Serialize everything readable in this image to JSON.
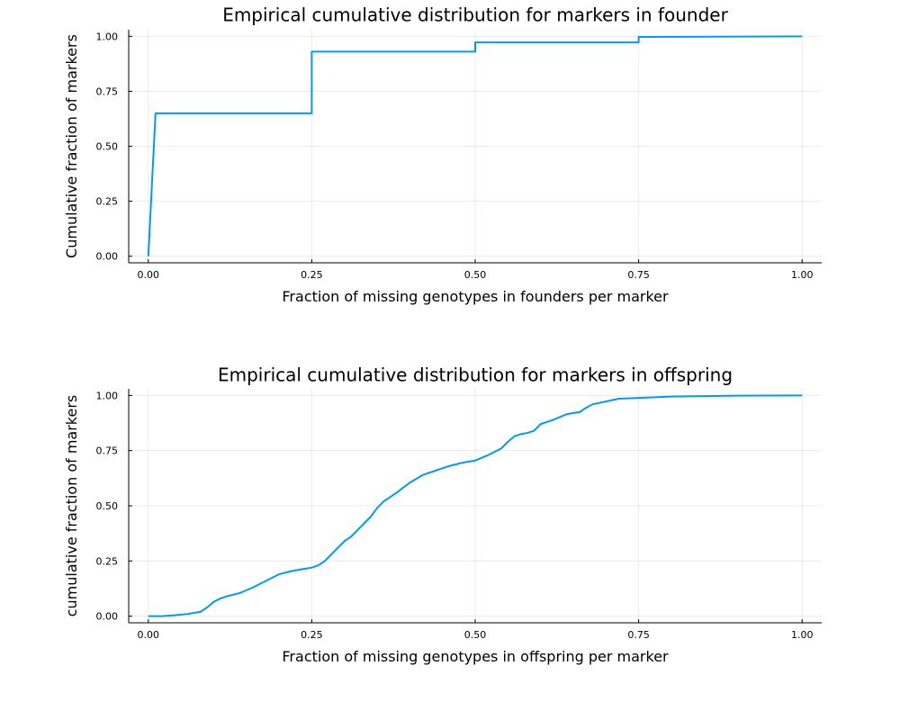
{
  "chart_data": [
    {
      "type": "line",
      "title": "Empirical cumulative distribution for markers in founder",
      "xlabel": "Fraction of missing genotypes in founders per marker",
      "ylabel": "Cumulative fraction of markers",
      "xlim": [
        -0.03,
        1.03
      ],
      "ylim": [
        -0.03,
        1.03
      ],
      "xticks": [
        0.0,
        0.25,
        0.5,
        0.75,
        1.0
      ],
      "xtick_labels": [
        "0.00",
        "0.25",
        "0.50",
        "0.75",
        "1.00"
      ],
      "yticks": [
        0.0,
        0.25,
        0.5,
        0.75,
        1.0
      ],
      "ytick_labels": [
        "0.00",
        "0.25",
        "0.50",
        "0.75",
        "1.00"
      ],
      "grid": true,
      "legend": "none",
      "series": [
        {
          "color": "#009AF9",
          "x": [
            0.0,
            0.011,
            0.25,
            0.25,
            0.5,
            0.5,
            0.75,
            0.75,
            1.0
          ],
          "y": [
            0.0,
            0.65,
            0.65,
            0.93,
            0.93,
            0.972,
            0.972,
            0.997,
            1.0
          ]
        }
      ]
    },
    {
      "type": "line",
      "title": "Empirical cumulative distribution for markers in offspring",
      "xlabel": "Fraction of missing genotypes in offspring per marker",
      "ylabel": "cumulative fraction of markers",
      "xlim": [
        -0.03,
        1.03
      ],
      "ylim": [
        -0.03,
        1.03
      ],
      "xticks": [
        0.0,
        0.25,
        0.5,
        0.75,
        1.0
      ],
      "xtick_labels": [
        "0.00",
        "0.25",
        "0.50",
        "0.75",
        "1.00"
      ],
      "yticks": [
        0.0,
        0.25,
        0.5,
        0.75,
        1.0
      ],
      "ytick_labels": [
        "0.00",
        "0.25",
        "0.50",
        "0.75",
        "1.00"
      ],
      "grid": true,
      "legend": "none",
      "series": [
        {
          "color": "#009AF9",
          "x": [
            0.0,
            0.02,
            0.04,
            0.06,
            0.08,
            0.09,
            0.1,
            0.11,
            0.12,
            0.14,
            0.16,
            0.18,
            0.2,
            0.22,
            0.24,
            0.25,
            0.26,
            0.27,
            0.28,
            0.29,
            0.3,
            0.31,
            0.32,
            0.33,
            0.34,
            0.35,
            0.36,
            0.37,
            0.38,
            0.4,
            0.42,
            0.44,
            0.46,
            0.48,
            0.5,
            0.52,
            0.54,
            0.55,
            0.56,
            0.57,
            0.58,
            0.59,
            0.6,
            0.62,
            0.64,
            0.66,
            0.67,
            0.68,
            0.72,
            0.8,
            0.9,
            1.0
          ],
          "y": [
            0.0,
            0.0,
            0.004,
            0.01,
            0.02,
            0.04,
            0.065,
            0.08,
            0.09,
            0.105,
            0.13,
            0.16,
            0.19,
            0.205,
            0.215,
            0.22,
            0.23,
            0.25,
            0.28,
            0.31,
            0.34,
            0.36,
            0.39,
            0.42,
            0.45,
            0.49,
            0.52,
            0.54,
            0.56,
            0.605,
            0.64,
            0.66,
            0.68,
            0.695,
            0.705,
            0.73,
            0.76,
            0.79,
            0.815,
            0.825,
            0.83,
            0.84,
            0.87,
            0.89,
            0.915,
            0.925,
            0.945,
            0.96,
            0.985,
            0.995,
            0.999,
            1.0
          ]
        }
      ]
    }
  ]
}
